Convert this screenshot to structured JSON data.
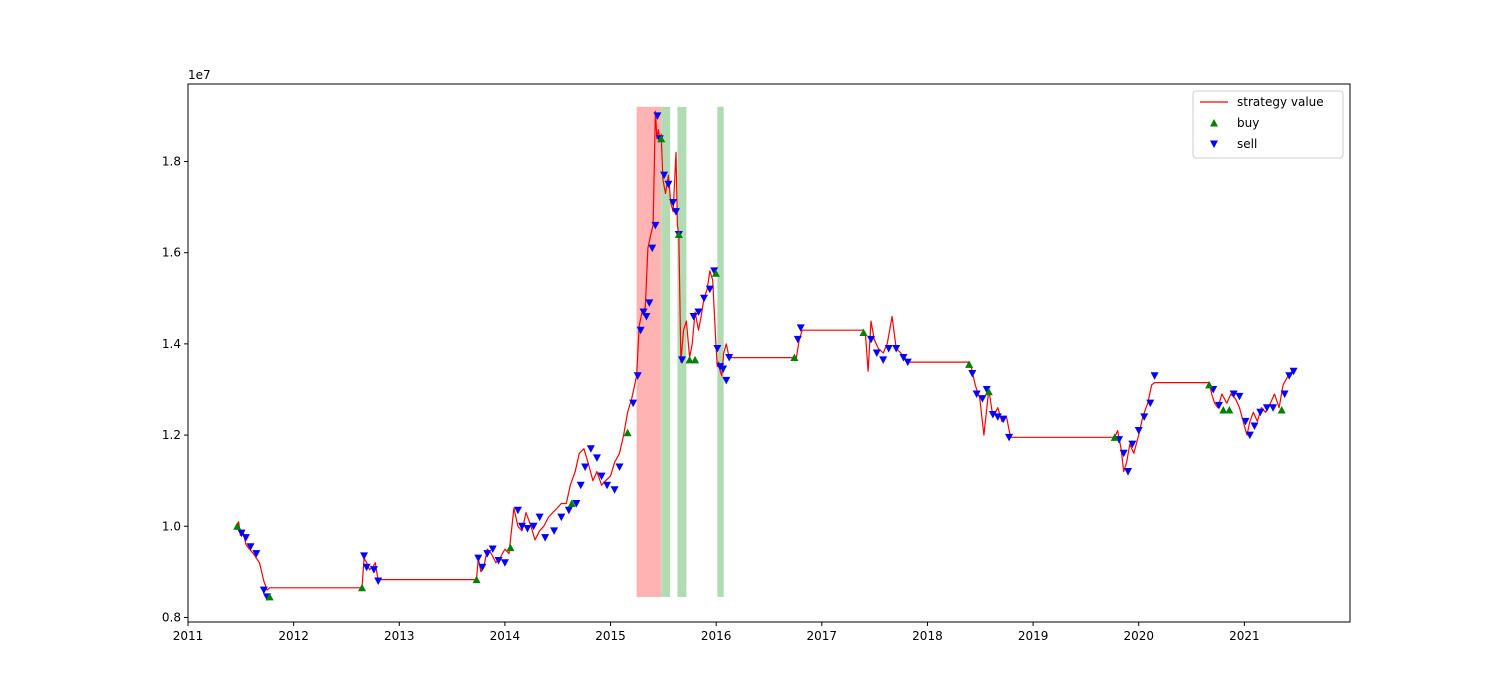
{
  "chart_data": {
    "type": "line",
    "title": "",
    "xlabel": "",
    "ylabel": "",
    "y_multiplier_label": "1e7",
    "x_tick_labels": [
      "2011",
      "2012",
      "2013",
      "2014",
      "2015",
      "2016",
      "2017",
      "2018",
      "2019",
      "2020",
      "2021"
    ],
    "y_tick_labels": [
      "0.8",
      "1.0",
      "1.2",
      "1.4",
      "1.6",
      "1.8"
    ],
    "xlim": [
      "2011-01-01",
      "2021-12-31"
    ],
    "ylim": [
      0.79,
      1.97
    ],
    "legend": {
      "placement": "top-right",
      "entries": [
        {
          "label": "strategy value",
          "kind": "line",
          "color": "#ff0000"
        },
        {
          "label": "buy",
          "kind": "up-triangle",
          "color": "#008000"
        },
        {
          "label": "sell",
          "kind": "down-triangle",
          "color": "#0000ff"
        }
      ]
    },
    "shaded_regions": [
      {
        "x_start": "2015-04-01",
        "x_end": "2015-06-25",
        "color": "#ffb3b3"
      },
      {
        "x_start": "2015-06-25",
        "x_end": "2015-07-26",
        "color": "#b3dbb3"
      },
      {
        "x_start": "2015-08-20",
        "x_end": "2015-09-20",
        "color": "#b3dbb3"
      },
      {
        "x_start": "2016-01-05",
        "x_end": "2016-01-27",
        "color": "#b3dbb3"
      }
    ],
    "shaded_y_range": [
      0.845,
      1.92
    ],
    "series": [
      {
        "name": "strategy value",
        "color": "#ff0000",
        "x": [
          "2011-06-20",
          "2011-06-25",
          "2011-07-01",
          "2011-07-10",
          "2011-07-20",
          "2011-08-01",
          "2011-08-15",
          "2011-08-25",
          "2011-09-05",
          "2011-09-20",
          "2011-10-01",
          "2011-10-10",
          "2012-08-25",
          "2012-09-01",
          "2012-09-10",
          "2012-09-20",
          "2012-10-01",
          "2012-10-10",
          "2012-10-20",
          "2012-10-25",
          "2013-09-25",
          "2013-10-01",
          "2013-10-10",
          "2013-10-20",
          "2013-11-01",
          "2013-11-15",
          "2013-12-01",
          "2013-12-15",
          "2014-01-01",
          "2014-01-15",
          "2014-02-01",
          "2014-02-15",
          "2014-03-01",
          "2014-03-15",
          "2014-04-01",
          "2014-04-15",
          "2014-05-01",
          "2014-05-15",
          "2014-06-01",
          "2014-06-15",
          "2014-07-01",
          "2014-07-15",
          "2014-08-01",
          "2014-08-15",
          "2014-09-01",
          "2014-09-15",
          "2014-10-01",
          "2014-10-15",
          "2014-11-01",
          "2014-11-15",
          "2014-12-01",
          "2014-12-15",
          "2015-01-01",
          "2015-01-15",
          "2015-02-01",
          "2015-02-15",
          "2015-03-01",
          "2015-03-15",
          "2015-04-01",
          "2015-04-10",
          "2015-04-20",
          "2015-05-01",
          "2015-05-10",
          "2015-05-20",
          "2015-05-28",
          "2015-06-05",
          "2015-06-10",
          "2015-06-15",
          "2015-06-20",
          "2015-06-25",
          "2015-07-01",
          "2015-07-10",
          "2015-07-20",
          "2015-07-28",
          "2015-08-05",
          "2015-08-10",
          "2015-08-15",
          "2015-08-20",
          "2015-08-25",
          "2015-09-01",
          "2015-09-10",
          "2015-09-20",
          "2015-10-01",
          "2015-10-10",
          "2015-10-20",
          "2015-11-01",
          "2015-11-10",
          "2015-11-20",
          "2015-12-01",
          "2015-12-10",
          "2015-12-20",
          "2015-12-31",
          "2016-01-05",
          "2016-01-10",
          "2016-01-15",
          "2016-01-20",
          "2016-01-27",
          "2016-02-05",
          "2016-02-15",
          "2016-09-28",
          "2016-10-05",
          "2016-10-15",
          "2016-10-25",
          "2017-05-25",
          "2017-06-01",
          "2017-06-10",
          "2017-06-20",
          "2017-07-01",
          "2017-07-15",
          "2017-08-01",
          "2017-08-15",
          "2017-09-01",
          "2017-09-15",
          "2017-10-01",
          "2017-10-15",
          "2017-10-25",
          "2018-05-25",
          "2018-06-01",
          "2018-06-15",
          "2018-07-01",
          "2018-07-15",
          "2018-08-01",
          "2018-08-15",
          "2018-09-01",
          "2018-09-15",
          "2018-10-01",
          "2018-10-15",
          "2019-10-10",
          "2019-10-20",
          "2019-11-01",
          "2019-11-10",
          "2019-11-20",
          "2019-12-01",
          "2019-12-15",
          "2020-01-01",
          "2020-01-15",
          "2020-02-01",
          "2020-02-15",
          "2020-02-25",
          "2020-09-01",
          "2020-09-10",
          "2020-09-20",
          "2020-10-01",
          "2020-10-15",
          "2020-11-01",
          "2020-11-15",
          "2020-12-01",
          "2020-12-15",
          "2021-01-01",
          "2021-01-10",
          "2021-01-20",
          "2021-02-01",
          "2021-02-15",
          "2021-03-01",
          "2021-03-15",
          "2021-04-01",
          "2021-04-15",
          "2021-05-01",
          "2021-05-15",
          "2021-06-01",
          "2021-06-15",
          "2021-06-25"
        ],
        "values": [
          1.0,
          1.01,
          0.98,
          0.99,
          0.96,
          0.95,
          0.94,
          0.93,
          0.92,
          0.88,
          0.86,
          0.865,
          0.865,
          0.93,
          0.92,
          0.905,
          0.91,
          0.92,
          0.88,
          0.883,
          0.883,
          0.93,
          0.9,
          0.91,
          0.95,
          0.94,
          0.92,
          0.93,
          0.95,
          0.94,
          1.04,
          1.0,
          0.99,
          1.03,
          1.0,
          0.97,
          0.99,
          1.0,
          1.02,
          1.03,
          1.04,
          1.05,
          1.05,
          1.09,
          1.12,
          1.16,
          1.17,
          1.14,
          1.1,
          1.12,
          1.09,
          1.1,
          1.11,
          1.14,
          1.16,
          1.2,
          1.25,
          1.28,
          1.33,
          1.44,
          1.47,
          1.48,
          1.61,
          1.64,
          1.66,
          1.91,
          1.85,
          1.87,
          1.85,
          1.86,
          1.76,
          1.73,
          1.77,
          1.71,
          1.69,
          1.75,
          1.82,
          1.66,
          1.64,
          1.36,
          1.43,
          1.45,
          1.37,
          1.4,
          1.47,
          1.43,
          1.46,
          1.5,
          1.52,
          1.56,
          1.54,
          1.4,
          1.35,
          1.36,
          1.34,
          1.33,
          1.38,
          1.4,
          1.37,
          1.37,
          1.37,
          1.41,
          1.43,
          1.43,
          1.42,
          1.34,
          1.45,
          1.41,
          1.39,
          1.38,
          1.4,
          1.46,
          1.39,
          1.38,
          1.37,
          1.36,
          1.36,
          1.35,
          1.31,
          1.28,
          1.2,
          1.3,
          1.24,
          1.26,
          1.23,
          1.24,
          1.195,
          1.195,
          1.21,
          1.17,
          1.12,
          1.14,
          1.18,
          1.16,
          1.2,
          1.24,
          1.27,
          1.31,
          1.315,
          1.315,
          1.29,
          1.27,
          1.26,
          1.29,
          1.27,
          1.29,
          1.28,
          1.26,
          1.22,
          1.2,
          1.23,
          1.25,
          1.23,
          1.26,
          1.25,
          1.27,
          1.29,
          1.26,
          1.31,
          1.33,
          1.34,
          1.345
        ]
      }
    ],
    "buy_points": {
      "x": [
        "2011-06-20",
        "2011-10-10",
        "2012-08-25",
        "2013-09-25",
        "2014-01-20",
        "2014-08-20",
        "2015-03-01",
        "2015-06-25",
        "2015-08-25",
        "2015-10-01",
        "2015-10-20",
        "2015-12-31",
        "2016-09-28",
        "2017-05-25",
        "2018-05-25",
        "2018-08-01",
        "2019-10-10",
        "2020-09-01",
        "2020-10-20",
        "2020-11-10",
        "2021-05-10"
      ],
      "values": [
        1.0,
        0.845,
        0.865,
        0.883,
        0.953,
        1.05,
        1.205,
        1.85,
        1.64,
        1.365,
        1.365,
        1.555,
        1.37,
        1.425,
        1.355,
        1.295,
        1.195,
        1.31,
        1.255,
        1.255,
        1.255
      ]
    },
    "sell_points": {
      "x": [
        "2011-07-05",
        "2011-07-20",
        "2011-08-05",
        "2011-08-25",
        "2011-09-20",
        "2011-10-01",
        "2012-09-01",
        "2012-09-10",
        "2012-10-05",
        "2012-10-20",
        "2013-10-01",
        "2013-10-15",
        "2013-11-01",
        "2013-11-20",
        "2013-12-10",
        "2014-01-01",
        "2014-02-15",
        "2014-03-01",
        "2014-03-20",
        "2014-04-10",
        "2014-05-01",
        "2014-05-20",
        "2014-06-20",
        "2014-07-15",
        "2014-08-10",
        "2014-09-05",
        "2014-09-20",
        "2014-10-05",
        "2014-10-25",
        "2014-11-15",
        "2014-12-01",
        "2014-12-20",
        "2015-01-15",
        "2015-02-01",
        "2015-03-20",
        "2015-04-05",
        "2015-04-15",
        "2015-04-25",
        "2015-05-05",
        "2015-05-15",
        "2015-05-25",
        "2015-06-05",
        "2015-06-12",
        "2015-06-20",
        "2015-07-05",
        "2015-07-20",
        "2015-08-05",
        "2015-08-15",
        "2015-08-25",
        "2015-09-05",
        "2015-10-15",
        "2015-11-01",
        "2015-11-20",
        "2015-12-10",
        "2015-12-25",
        "2016-01-05",
        "2016-01-15",
        "2016-01-25",
        "2016-02-05",
        "2016-02-15",
        "2016-10-10",
        "2016-10-20",
        "2017-06-20",
        "2017-07-10",
        "2017-08-01",
        "2017-08-20",
        "2017-09-15",
        "2017-10-10",
        "2017-10-25",
        "2018-06-05",
        "2018-06-20",
        "2018-07-10",
        "2018-07-25",
        "2018-08-15",
        "2018-09-01",
        "2018-09-20",
        "2018-10-10",
        "2019-10-25",
        "2019-11-10",
        "2019-11-25",
        "2019-12-10",
        "2020-01-01",
        "2020-01-20",
        "2020-02-10",
        "2020-02-25",
        "2020-09-15",
        "2020-10-05",
        "2020-11-25",
        "2020-12-15",
        "2021-01-05",
        "2021-01-20",
        "2021-02-05",
        "2021-02-25",
        "2021-03-20",
        "2021-04-10",
        "2021-05-20",
        "2021-06-05",
        "2021-06-20"
      ],
      "values": [
        0.985,
        0.975,
        0.955,
        0.94,
        0.86,
        0.845,
        0.935,
        0.91,
        0.905,
        0.88,
        0.93,
        0.91,
        0.94,
        0.95,
        0.925,
        0.92,
        1.035,
        1.0,
        0.995,
        1.0,
        1.02,
        0.975,
        0.99,
        1.02,
        1.035,
        1.05,
        1.09,
        1.13,
        1.17,
        1.15,
        1.11,
        1.09,
        1.08,
        1.13,
        1.27,
        1.33,
        1.43,
        1.47,
        1.46,
        1.49,
        1.61,
        1.66,
        1.9,
        1.85,
        1.77,
        1.75,
        1.71,
        1.69,
        1.64,
        1.365,
        1.46,
        1.47,
        1.5,
        1.52,
        1.56,
        1.39,
        1.35,
        1.345,
        1.32,
        1.37,
        1.41,
        1.435,
        1.41,
        1.38,
        1.365,
        1.39,
        1.39,
        1.37,
        1.36,
        1.335,
        1.29,
        1.28,
        1.3,
        1.245,
        1.24,
        1.235,
        1.195,
        1.19,
        1.16,
        1.12,
        1.18,
        1.21,
        1.24,
        1.27,
        1.33,
        1.3,
        1.265,
        1.29,
        1.285,
        1.23,
        1.2,
        1.22,
        1.25,
        1.26,
        1.26,
        1.29,
        1.33,
        1.34
      ]
    }
  }
}
